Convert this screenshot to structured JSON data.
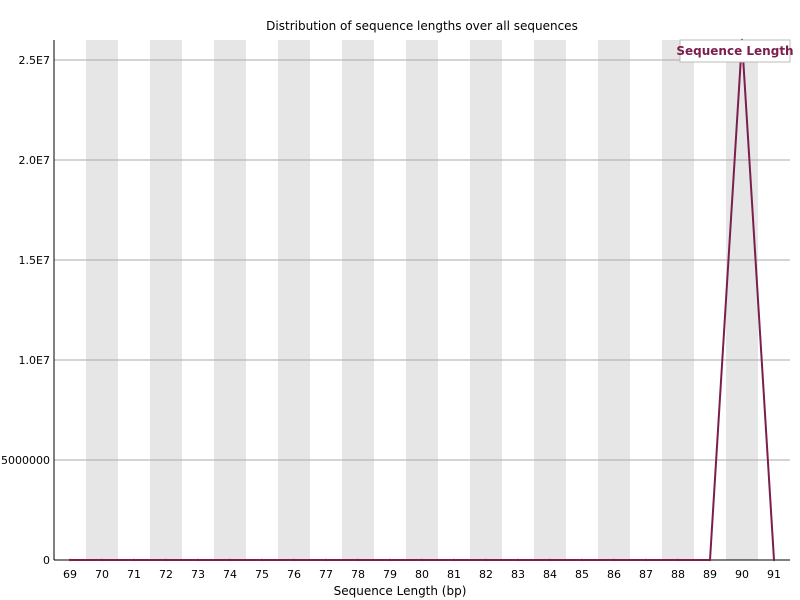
{
  "chart_data": {
    "type": "line",
    "title": "Distribution of sequence lengths over all sequences",
    "xlabel": "Sequence Length (bp)",
    "ylabel": "",
    "x": [
      69,
      70,
      71,
      72,
      73,
      74,
      75,
      76,
      77,
      78,
      79,
      80,
      81,
      82,
      83,
      84,
      85,
      86,
      87,
      88,
      89,
      90,
      91
    ],
    "series": [
      {
        "name": "Sequence Length",
        "color": "#7b1e4e",
        "values": [
          0,
          0,
          0,
          0,
          0,
          0,
          0,
          0,
          0,
          0,
          0,
          0,
          0,
          0,
          0,
          0,
          0,
          0,
          0,
          0,
          0,
          26000000,
          0
        ]
      }
    ],
    "ylim": [
      0,
      26000000
    ],
    "yticks": [
      0,
      5000000,
      10000000,
      15000000,
      20000000,
      25000000
    ],
    "ytick_labels": [
      "0",
      "5000000",
      "1.0E7",
      "1.5E7",
      "2.0E7",
      "2.5E7"
    ],
    "grid": true,
    "legend": "top-right",
    "band_color": "#e6e6e6",
    "grid_color": "#aaaaaa"
  }
}
